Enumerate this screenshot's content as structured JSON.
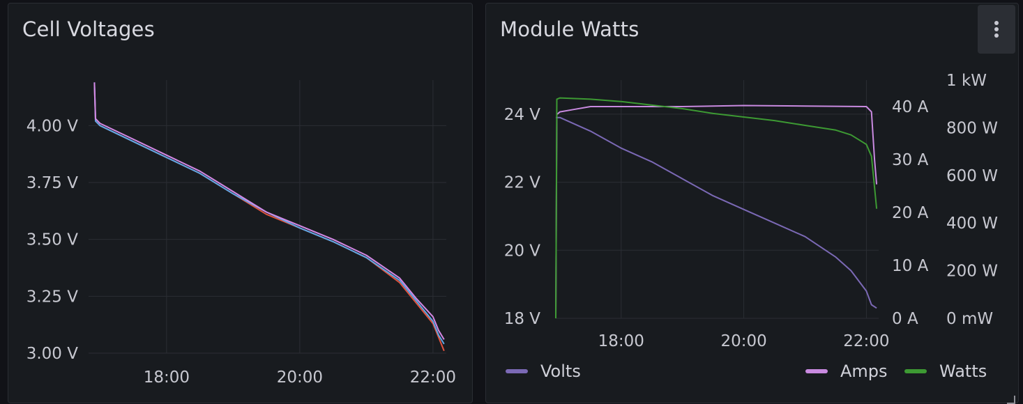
{
  "colors": {
    "volts": "#7b69b5",
    "amps": "#c98ae0",
    "watts": "#3d9a33",
    "cell_a": "#e0533f",
    "cell_b": "#5fa8e8",
    "cell_c": "#d489e6",
    "grid": "#2b2e34"
  },
  "panels": {
    "left": {
      "title": "Cell Voltages"
    },
    "right": {
      "title": "Module Watts",
      "menu_icon": "vertical-ellipsis-icon"
    }
  },
  "chart_data": [
    {
      "type": "line",
      "title": "Cell Voltages",
      "x_ticks": [
        "18:00",
        "20:00",
        "22:00"
      ],
      "x_range": [
        "16:56",
        "22:12"
      ],
      "y_ticks": [
        "4.00 V",
        "3.75 V",
        "3.50 V",
        "3.25 V",
        "3.00 V"
      ],
      "ylim": [
        3.0,
        4.2
      ],
      "grid": true,
      "series": [
        {
          "color_key": "cell_a",
          "x": [
            "16:55",
            "16:56",
            "17:00",
            "17:30",
            "18:00",
            "18:30",
            "19:00",
            "19:30",
            "20:00",
            "20:30",
            "21:00",
            "21:30",
            "21:45",
            "22:00",
            "22:05",
            "22:10"
          ],
          "y": [
            4.18,
            4.02,
            4.0,
            3.93,
            3.86,
            3.79,
            3.7,
            3.61,
            3.55,
            3.49,
            3.42,
            3.31,
            3.22,
            3.13,
            3.07,
            3.01
          ]
        },
        {
          "color_key": "cell_b",
          "x": [
            "16:55",
            "16:56",
            "17:00",
            "17:30",
            "18:00",
            "18:30",
            "19:00",
            "19:30",
            "20:00",
            "20:30",
            "21:00",
            "21:30",
            "21:45",
            "22:00",
            "22:05",
            "22:10"
          ],
          "y": [
            4.19,
            4.02,
            4.0,
            3.93,
            3.86,
            3.79,
            3.7,
            3.62,
            3.55,
            3.49,
            3.42,
            3.32,
            3.23,
            3.14,
            3.08,
            3.04
          ]
        },
        {
          "color_key": "cell_c",
          "x": [
            "16:55",
            "16:56",
            "17:00",
            "17:30",
            "18:00",
            "18:30",
            "19:00",
            "19:30",
            "20:00",
            "20:30",
            "21:00",
            "21:30",
            "21:45",
            "22:00",
            "22:05",
            "22:10"
          ],
          "y": [
            4.19,
            4.03,
            4.01,
            3.94,
            3.87,
            3.8,
            3.71,
            3.62,
            3.56,
            3.5,
            3.43,
            3.33,
            3.24,
            3.16,
            3.1,
            3.06
          ]
        }
      ]
    },
    {
      "type": "line",
      "title": "Module Watts",
      "x_ticks": [
        "18:00",
        "20:00",
        "22:00"
      ],
      "x_range": [
        "16:56",
        "22:12"
      ],
      "axes": {
        "volts": {
          "ticks": [
            "24 V",
            "22 V",
            "20 V",
            "18 V"
          ],
          "ylim": [
            18,
            25
          ],
          "side": "left"
        },
        "amps": {
          "ticks": [
            "40 A",
            "30 A",
            "20 A",
            "10 A",
            "0 A"
          ],
          "ylim": [
            0,
            45
          ],
          "side": "right"
        },
        "watts": {
          "ticks": [
            "1 kW",
            "800 W",
            "600 W",
            "400 W",
            "200 W",
            "0 mW"
          ],
          "ylim": [
            0,
            1000
          ],
          "side": "right"
        }
      },
      "grid": true,
      "legend": [
        {
          "name": "Volts",
          "color_key": "volts",
          "placement": "bottom-left"
        },
        {
          "name": "Amps",
          "color_key": "amps",
          "placement": "bottom-right"
        },
        {
          "name": "Watts",
          "color_key": "watts",
          "placement": "bottom-right"
        }
      ],
      "series": [
        {
          "name": "Volts",
          "axis": "volts",
          "color_key": "volts",
          "x": [
            "16:56",
            "17:00",
            "17:30",
            "18:00",
            "18:30",
            "19:00",
            "19:30",
            "20:00",
            "20:30",
            "21:00",
            "21:30",
            "21:45",
            "22:00",
            "22:05",
            "22:10"
          ],
          "y": [
            23.9,
            23.9,
            23.5,
            23.0,
            22.6,
            22.1,
            21.6,
            21.2,
            20.8,
            20.4,
            19.8,
            19.4,
            18.8,
            18.4,
            18.3
          ]
        },
        {
          "name": "Amps",
          "axis": "amps",
          "color_key": "amps",
          "x": [
            "16:56",
            "16:57",
            "17:00",
            "17:15",
            "17:30",
            "18:00",
            "19:00",
            "20:00",
            "21:00",
            "22:00",
            "22:05",
            "22:08",
            "22:10"
          ],
          "y": [
            0,
            38.5,
            39.0,
            39.5,
            40.0,
            40.0,
            40.0,
            40.2,
            40.1,
            40.0,
            39.0,
            30.0,
            25.3
          ]
        },
        {
          "name": "Watts",
          "axis": "watts",
          "color_key": "watts",
          "x": [
            "16:56",
            "16:57",
            "17:00",
            "17:30",
            "18:00",
            "18:30",
            "19:00",
            "19:30",
            "20:00",
            "20:30",
            "21:00",
            "21:30",
            "21:45",
            "22:00",
            "22:05",
            "22:08",
            "22:10"
          ],
          "y": [
            0,
            920,
            925,
            920,
            910,
            895,
            880,
            860,
            845,
            830,
            810,
            790,
            770,
            730,
            680,
            550,
            460
          ]
        }
      ]
    }
  ]
}
